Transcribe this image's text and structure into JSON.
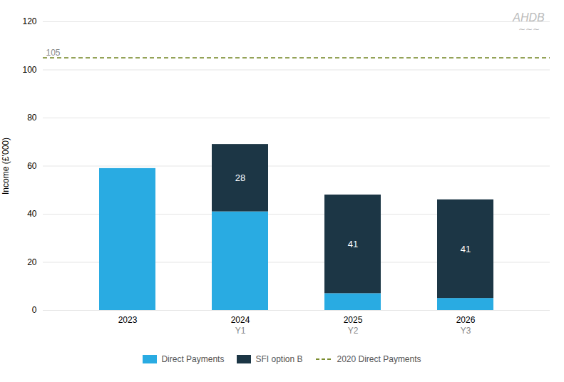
{
  "chart_data": {
    "type": "bar",
    "stacked": true,
    "categories": [
      "2023",
      "2024",
      "2025",
      "2026"
    ],
    "series": [
      {
        "name": "Direct Payments",
        "color": "#29ABE2",
        "values": [
          59,
          41,
          7,
          5
        ]
      },
      {
        "name": "SFI option B",
        "color": "#1C3645",
        "values": [
          0,
          28,
          41,
          41
        ],
        "data_labels": true
      }
    ],
    "reference_lines": [
      {
        "value": 105,
        "label": "105",
        "name": "2020 Direct Payments",
        "color": "#7A8C2E",
        "line_style": "dashed"
      }
    ],
    "annotations": [
      {
        "category": "2024",
        "text": "Y1"
      },
      {
        "category": "2025",
        "text": "Y2"
      },
      {
        "category": "2026",
        "text": "Y3"
      },
      {
        "text": "AHDB"
      },
      {
        "text": "∼∼∼"
      }
    ],
    "ylabel": "Income (£’000)",
    "ylim": [
      0,
      120
    ],
    "yticks": [
      0,
      20,
      40,
      60,
      80,
      100,
      120
    ],
    "grid": true,
    "legend": "bottom"
  }
}
